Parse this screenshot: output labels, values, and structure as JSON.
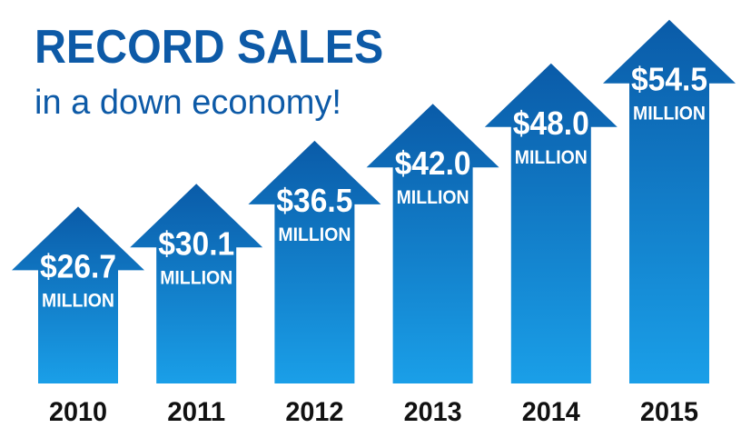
{
  "chart_data": {
    "type": "bar",
    "title": "RECORD SALES",
    "subtitle": "in a down economy!",
    "categories": [
      "2010",
      "2011",
      "2012",
      "2013",
      "2014",
      "2015"
    ],
    "values": [
      26.7,
      30.1,
      36.5,
      42.0,
      48.0,
      54.5
    ],
    "value_labels": [
      "$26.7",
      "$30.1",
      "$36.5",
      "$42.0",
      "$48.0",
      "$54.5"
    ],
    "unit_label": "MILLION",
    "xlabel": "",
    "ylabel": "",
    "grid": false,
    "legend": "none"
  },
  "colors": {
    "title": "#0d5aa7",
    "arrow_top": "#0a5ba8",
    "arrow_bottom": "#1a9fe8",
    "label": "#ffffff",
    "year": "#111111"
  }
}
